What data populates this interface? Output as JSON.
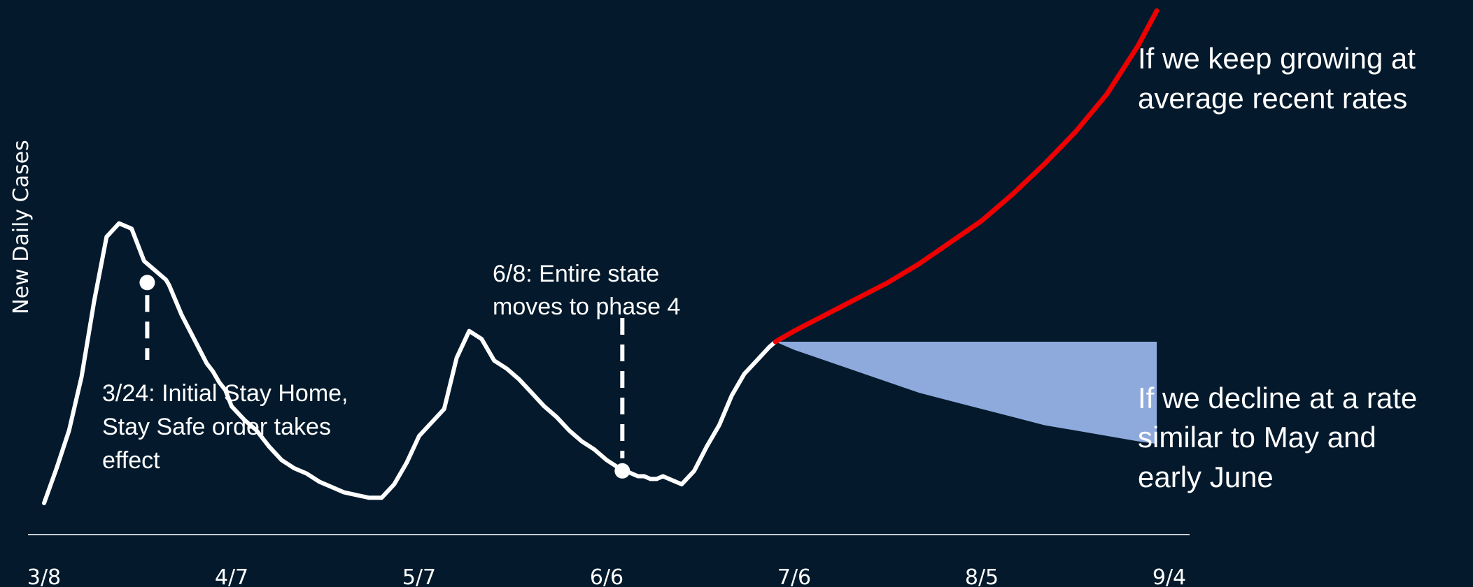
{
  "chart_data": {
    "type": "line",
    "title": "",
    "xlabel": "",
    "ylabel": "New Daily Cases",
    "grid": false,
    "legend": "none",
    "x_ticks": [
      "3/8",
      "4/7",
      "5/7",
      "6/6",
      "7/6",
      "8/5",
      "9/4"
    ],
    "x_range_days": [
      0,
      180
    ],
    "series": [
      {
        "name": "",
        "color": "#ffffff",
        "x": [
          0,
          2,
          4,
          6,
          8,
          10,
          12,
          14,
          16,
          18,
          19.5,
          20,
          22,
          24,
          26,
          27,
          28,
          29,
          30,
          32,
          34,
          36,
          38,
          40,
          42,
          44,
          46,
          48,
          50,
          52,
          54,
          56,
          58,
          60,
          62,
          64,
          66,
          68,
          70,
          72,
          74,
          76,
          78,
          80,
          82,
          84,
          86,
          88,
          90,
          92,
          94,
          95,
          96,
          97,
          98,
          99,
          100,
          102,
          104,
          106,
          108,
          110,
          112,
          114,
          116,
          117
        ],
        "y": [
          0.0,
          0.13,
          0.27,
          0.47,
          0.75,
          0.99,
          1.04,
          1.02,
          0.9,
          0.86,
          0.83,
          0.81,
          0.7,
          0.61,
          0.52,
          0.49,
          0.45,
          0.42,
          0.36,
          0.31,
          0.27,
          0.21,
          0.16,
          0.13,
          0.11,
          0.08,
          0.06,
          0.04,
          0.03,
          0.02,
          0.02,
          0.07,
          0.15,
          0.25,
          0.3,
          0.35,
          0.54,
          0.64,
          0.61,
          0.53,
          0.5,
          0.46,
          0.41,
          0.36,
          0.32,
          0.27,
          0.23,
          0.2,
          0.16,
          0.13,
          0.11,
          0.1,
          0.1,
          0.09,
          0.09,
          0.1,
          0.09,
          0.07,
          0.12,
          0.21,
          0.29,
          0.4,
          0.48,
          0.53,
          0.58,
          0.6
        ]
      },
      {
        "name": "If we keep growing at average recent rates",
        "color": "#ee0000",
        "x": [
          117,
          120,
          125,
          130,
          135,
          140,
          145,
          150,
          155,
          160,
          165,
          170,
          175,
          178
        ],
        "y": [
          0.6,
          0.64,
          0.7,
          0.76,
          0.82,
          0.89,
          0.97,
          1.05,
          1.15,
          1.26,
          1.38,
          1.52,
          1.7,
          1.83
        ]
      },
      {
        "name": "If we decline at a rate similar to May and early June",
        "color": "#8eaadd",
        "type": "area",
        "x": [
          117,
          120,
          125,
          130,
          135,
          140,
          145,
          150,
          155,
          160,
          165,
          170,
          175,
          178
        ],
        "y_upper": [
          0.6,
          0.6,
          0.6,
          0.6,
          0.6,
          0.6,
          0.6,
          0.6,
          0.6,
          0.6,
          0.6,
          0.6,
          0.6,
          0.6
        ],
        "y_lower": [
          0.6,
          0.57,
          0.53,
          0.49,
          0.45,
          0.41,
          0.38,
          0.35,
          0.32,
          0.29,
          0.27,
          0.25,
          0.23,
          0.22
        ]
      }
    ],
    "markers": [
      {
        "x": 16.5,
        "y": 0.82,
        "label": "3/24: Initial Stay Home, Stay Safe order takes effect"
      },
      {
        "x": 92.5,
        "y": 0.12,
        "label": "6/8: Entire state moves to phase 4"
      }
    ]
  },
  "annotations": {
    "event1_line1": "3/24: Initial Stay Home,",
    "event1_line2": "Stay Safe order takes",
    "event1_line3": "effect",
    "event2_line1": "6/8: Entire state",
    "event2_line2": "moves to phase 4",
    "growth_line1": "If we keep growing at",
    "growth_line2": "average recent rates",
    "decline_line1": "If we decline at a rate",
    "decline_line2": "similar to May and",
    "decline_line3": "early June"
  }
}
